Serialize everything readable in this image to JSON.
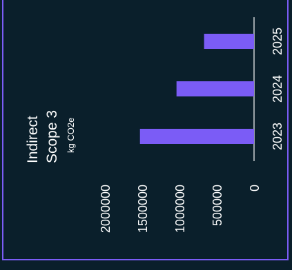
{
  "chart_data": {
    "type": "bar",
    "title_lines": [
      "Indirect",
      "Scope 3"
    ],
    "unit_label": "kg CO2e",
    "categories": [
      "2023",
      "2024",
      "2025"
    ],
    "values": [
      1530000,
      1040000,
      670000
    ],
    "ylim": [
      0,
      2000000
    ],
    "y_ticks": [
      "0",
      "500000",
      "1000000",
      "1500000",
      "2000000"
    ],
    "bar_color": "#7b5cf6",
    "axis_color": "#ffffff",
    "text_color": "#ffffff",
    "background": "#0a1f2b",
    "border_color": "#7b5cf6"
  }
}
